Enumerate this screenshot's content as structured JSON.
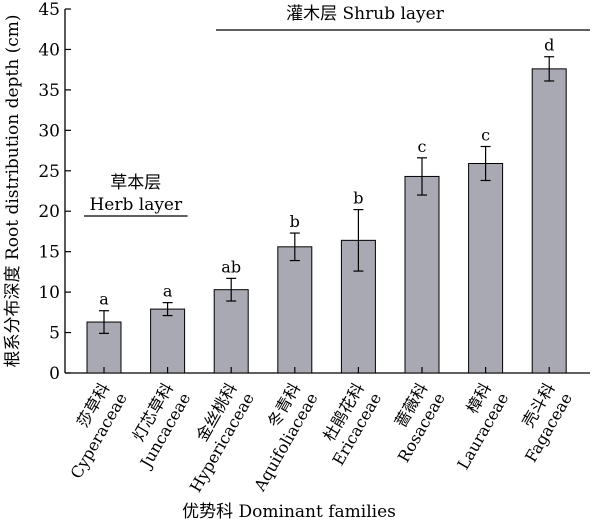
{
  "chart_data": {
    "type": "bar",
    "title": "",
    "xlabel": "优势科 Dominant families",
    "ylabel": "根系分布深度 Root distribution depth (cm)",
    "ylim": [
      0,
      45
    ],
    "yticks": [
      0,
      5,
      10,
      15,
      20,
      25,
      30,
      35,
      40,
      45
    ],
    "grid": false,
    "bar_color": "#a9a9b3",
    "categories": [
      {
        "cn": "莎草科",
        "en": "Cyperaceae"
      },
      {
        "cn": "灯芯草科",
        "en": "Juncaceae"
      },
      {
        "cn": "金丝桃科",
        "en": "Hypericaceae"
      },
      {
        "cn": "冬青科",
        "en": "Aquifoliaceae"
      },
      {
        "cn": "杜鹃花科",
        "en": "Ericaceae"
      },
      {
        "cn": "蔷薇科",
        "en": "Rosaceae"
      },
      {
        "cn": "樟科",
        "en": "Lauraceae"
      },
      {
        "cn": "壳斗科",
        "en": "Fagaceae"
      }
    ],
    "values": [
      6.3,
      7.9,
      10.3,
      15.6,
      16.4,
      24.3,
      25.9,
      37.6
    ],
    "errors": [
      1.4,
      0.8,
      1.4,
      1.7,
      3.8,
      2.3,
      2.1,
      1.5
    ],
    "significance": [
      "a",
      "a",
      "ab",
      "b",
      "b",
      "c",
      "c",
      "d"
    ],
    "groups": [
      {
        "label_cn": "草本层",
        "label_en": "Herb layer",
        "from": 0,
        "to": 1
      },
      {
        "label_cn": "灌木层",
        "label_en": "Shrub layer",
        "from": 2,
        "to": 7
      }
    ]
  }
}
